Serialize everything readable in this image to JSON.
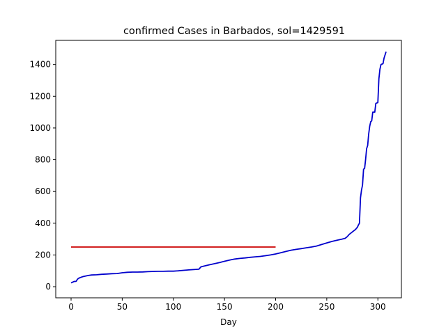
{
  "chart_data": {
    "type": "line",
    "title": "confirmed Cases in Barbados, sol=1429591",
    "xlabel": "Day",
    "ylabel": "",
    "xlim": [
      -15,
      323
    ],
    "ylim": [
      -70,
      1552
    ],
    "x_ticks": [
      0,
      50,
      100,
      150,
      200,
      250,
      300
    ],
    "y_ticks": [
      0,
      200,
      400,
      600,
      800,
      1000,
      1200,
      1400
    ],
    "grid": false,
    "series": [
      {
        "color": "#0000cc",
        "points": [
          [
            0,
            24
          ],
          [
            2,
            30
          ],
          [
            3,
            33
          ],
          [
            5,
            34
          ],
          [
            6,
            45
          ],
          [
            7,
            52
          ],
          [
            8,
            55
          ],
          [
            10,
            60
          ],
          [
            12,
            64
          ],
          [
            14,
            67
          ],
          [
            16,
            70
          ],
          [
            18,
            72
          ],
          [
            20,
            74
          ],
          [
            25,
            75
          ],
          [
            30,
            78
          ],
          [
            35,
            80
          ],
          [
            40,
            82
          ],
          [
            45,
            83
          ],
          [
            50,
            88
          ],
          [
            55,
            91
          ],
          [
            60,
            92
          ],
          [
            65,
            92
          ],
          [
            70,
            93
          ],
          [
            75,
            95
          ],
          [
            80,
            96
          ],
          [
            85,
            97
          ],
          [
            90,
            97
          ],
          [
            95,
            98
          ],
          [
            100,
            98
          ],
          [
            105,
            100
          ],
          [
            110,
            103
          ],
          [
            115,
            106
          ],
          [
            120,
            108
          ],
          [
            125,
            110
          ],
          [
            127,
            125
          ],
          [
            130,
            130
          ],
          [
            135,
            138
          ],
          [
            140,
            145
          ],
          [
            145,
            152
          ],
          [
            150,
            160
          ],
          [
            155,
            168
          ],
          [
            160,
            174
          ],
          [
            165,
            178
          ],
          [
            170,
            181
          ],
          [
            175,
            185
          ],
          [
            180,
            188
          ],
          [
            185,
            191
          ],
          [
            190,
            195
          ],
          [
            195,
            200
          ],
          [
            200,
            206
          ],
          [
            205,
            214
          ],
          [
            210,
            222
          ],
          [
            215,
            230
          ],
          [
            220,
            235
          ],
          [
            225,
            240
          ],
          [
            230,
            245
          ],
          [
            235,
            250
          ],
          [
            240,
            256
          ],
          [
            245,
            266
          ],
          [
            250,
            276
          ],
          [
            255,
            285
          ],
          [
            260,
            293
          ],
          [
            265,
            300
          ],
          [
            268,
            305
          ],
          [
            270,
            315
          ],
          [
            272,
            330
          ],
          [
            275,
            345
          ],
          [
            278,
            360
          ],
          [
            280,
            375
          ],
          [
            281,
            390
          ],
          [
            282,
            400
          ],
          [
            283,
            560
          ],
          [
            284,
            610
          ],
          [
            285,
            640
          ],
          [
            286,
            740
          ],
          [
            287,
            745
          ],
          [
            288,
            800
          ],
          [
            289,
            870
          ],
          [
            290,
            890
          ],
          [
            291,
            960
          ],
          [
            292,
            1010
          ],
          [
            293,
            1040
          ],
          [
            294,
            1045
          ],
          [
            295,
            1100
          ],
          [
            297,
            1100
          ],
          [
            298,
            1155
          ],
          [
            300,
            1160
          ],
          [
            301,
            1310
          ],
          [
            302,
            1370
          ],
          [
            303,
            1400
          ],
          [
            305,
            1405
          ],
          [
            306,
            1440
          ],
          [
            308,
            1480
          ]
        ]
      },
      {
        "color": "#cc0000",
        "points": [
          [
            0,
            250
          ],
          [
            200,
            250
          ]
        ]
      }
    ]
  }
}
